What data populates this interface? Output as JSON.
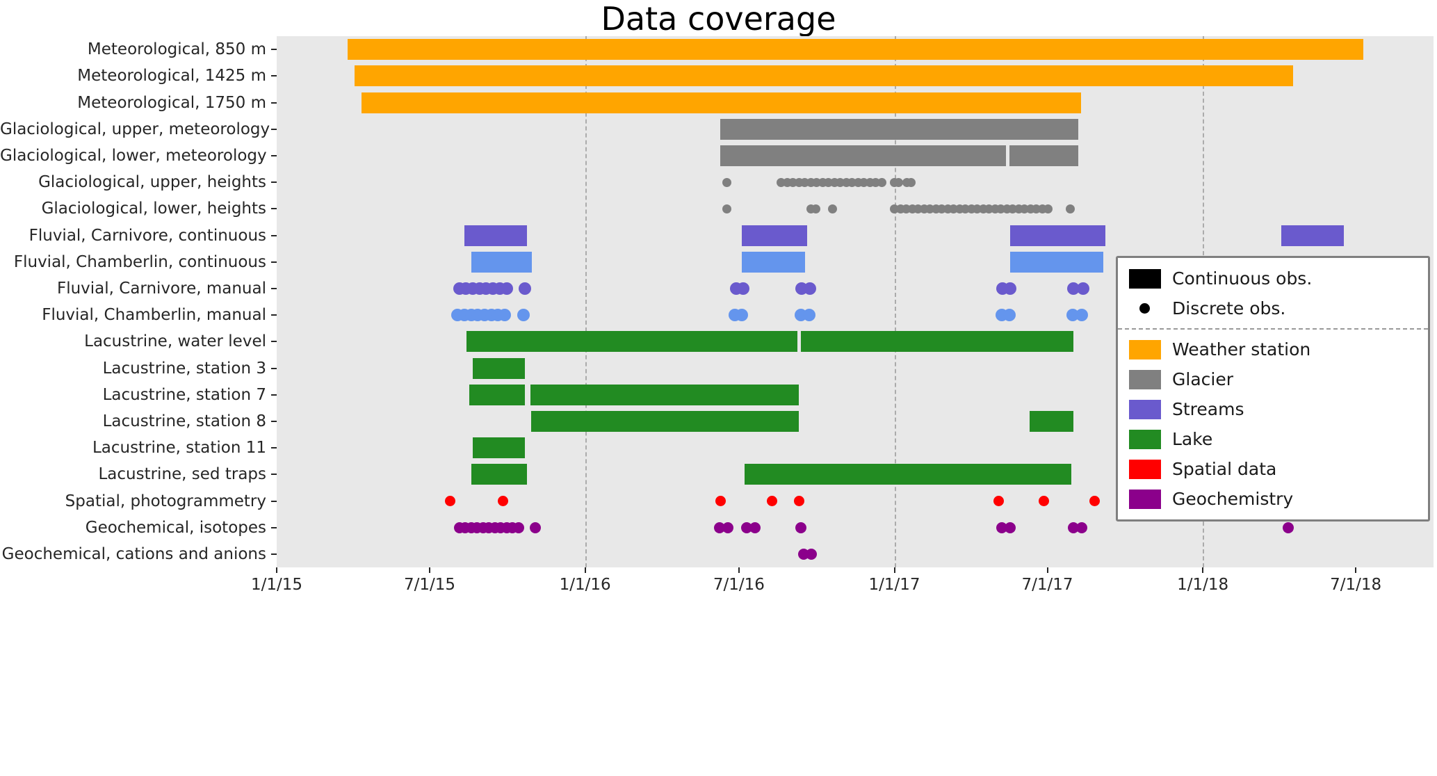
{
  "chart_data": {
    "type": "bar",
    "subtype": "gantt-timeline",
    "title": "Data coverage",
    "x_axis": {
      "domain": [
        "2015-01-01",
        "2018-10-01"
      ],
      "tick_labels": [
        "1/1/15",
        "7/1/15",
        "1/1/16",
        "7/1/16",
        "1/1/17",
        "7/1/17",
        "1/1/18",
        "7/1/18"
      ],
      "tick_dates": [
        "2015-01-01",
        "2015-07-01",
        "2016-01-01",
        "2016-07-01",
        "2017-01-01",
        "2017-07-01",
        "2018-01-01",
        "2018-07-01"
      ],
      "gridline_dates": [
        "2016-01-01",
        "2017-01-01",
        "2018-01-01"
      ],
      "grid": "dashed-vertical-at-year-starts"
    },
    "colors": {
      "weather_station": "#FFA500",
      "glacier": "#808080",
      "streams_dark": "#6A5ACD",
      "streams_light": "#6495ED",
      "lake": "#228B22",
      "spatial": "#FF0000",
      "geochemistry": "#8B008B",
      "black": "#000000",
      "plot_background": "#E8E8E8"
    },
    "rows": [
      {
        "label": "Meteorological, 850 m",
        "color": "weather_station",
        "segments": [
          [
            "2015-03-26",
            "2018-07-10"
          ]
        ],
        "points": []
      },
      {
        "label": "Meteorological, 1425 m",
        "color": "weather_station",
        "segments": [
          [
            "2015-04-03",
            "2018-04-18"
          ]
        ],
        "points": []
      },
      {
        "label": "Meteorological, 1750 m",
        "color": "weather_station",
        "segments": [
          [
            "2015-04-11",
            "2017-08-10"
          ]
        ],
        "points": []
      },
      {
        "label": "Glaciological, upper, meteorology",
        "color": "glacier",
        "segments": [
          [
            "2016-06-09",
            "2017-08-07"
          ]
        ],
        "points": []
      },
      {
        "label": "Glaciological, lower, meteorology",
        "color": "glacier",
        "segments": [
          [
            "2016-06-09",
            "2017-05-13"
          ],
          [
            "2017-05-17",
            "2017-08-07"
          ]
        ],
        "points": []
      },
      {
        "label": "Glaciological, upper, heights",
        "color": "glacier",
        "marker_size": 13,
        "segments": [],
        "points": [
          "2016-06-17",
          "2016-08-20",
          "2016-08-27",
          "2016-09-03",
          "2016-09-10",
          "2016-09-17",
          "2016-09-24",
          "2016-10-01",
          "2016-10-08",
          "2016-10-15",
          "2016-10-22",
          "2016-10-29",
          "2016-11-05",
          "2016-11-12",
          "2016-11-19",
          "2016-11-26",
          "2016-12-03",
          "2016-12-10",
          "2016-12-17",
          "2017-01-01",
          "2017-01-06",
          "2017-01-16",
          "2017-01-21"
        ]
      },
      {
        "label": "Glaciological, lower, heights",
        "color": "glacier",
        "marker_size": 13,
        "segments": [],
        "points": [
          "2016-06-17",
          "2016-09-24",
          "2016-09-30",
          "2016-10-20",
          "2017-01-01",
          "2017-01-08",
          "2017-01-15",
          "2017-01-22",
          "2017-01-29",
          "2017-02-05",
          "2017-02-12",
          "2017-02-19",
          "2017-02-26",
          "2017-03-05",
          "2017-03-12",
          "2017-03-19",
          "2017-03-26",
          "2017-04-02",
          "2017-04-09",
          "2017-04-16",
          "2017-04-23",
          "2017-04-30",
          "2017-05-07",
          "2017-05-14",
          "2017-05-21",
          "2017-05-28",
          "2017-06-04",
          "2017-06-11",
          "2017-06-18",
          "2017-06-25",
          "2017-07-02",
          "2017-07-28"
        ]
      },
      {
        "label": "Fluvial, Carnivore, continuous",
        "color": "streams_dark",
        "segments": [
          [
            "2015-08-11",
            "2015-10-24"
          ],
          [
            "2016-07-04",
            "2016-09-20"
          ],
          [
            "2017-05-18",
            "2017-09-08"
          ],
          [
            "2018-04-04",
            "2018-06-17"
          ]
        ],
        "points": []
      },
      {
        "label": "Fluvial, Chamberlin, continuous",
        "color": "streams_light",
        "segments": [
          [
            "2015-08-19",
            "2015-10-30"
          ],
          [
            "2016-07-04",
            "2016-09-17"
          ],
          [
            "2017-05-18",
            "2017-09-05"
          ]
        ],
        "points": []
      },
      {
        "label": "Fluvial, Carnivore, manual",
        "color": "streams_dark",
        "marker_size": 18,
        "segments": [],
        "points": [
          "2015-08-05",
          "2015-08-13",
          "2015-08-21",
          "2015-08-29",
          "2015-09-06",
          "2015-09-14",
          "2015-09-22",
          "2015-09-30",
          "2015-10-22",
          "2016-06-28",
          "2016-07-06",
          "2016-09-13",
          "2016-09-23",
          "2017-05-09",
          "2017-05-18",
          "2017-08-01",
          "2017-08-12"
        ]
      },
      {
        "label": "Fluvial, Chamberlin, manual",
        "color": "streams_light",
        "marker_size": 18,
        "segments": [],
        "points": [
          "2015-08-03",
          "2015-08-11",
          "2015-08-19",
          "2015-08-27",
          "2015-09-04",
          "2015-09-12",
          "2015-09-20",
          "2015-09-28",
          "2015-10-20",
          "2016-06-26",
          "2016-07-04",
          "2016-09-12",
          "2016-09-22",
          "2017-05-08",
          "2017-05-17",
          "2017-07-31",
          "2017-08-11"
        ]
      },
      {
        "label": "Lacustrine, water level",
        "color": "lake",
        "segments": [
          [
            "2015-08-14",
            "2016-09-08"
          ],
          [
            "2016-09-12",
            "2017-08-01"
          ]
        ],
        "points": []
      },
      {
        "label": "Lacustrine, station 3",
        "color": "lake",
        "segments": [
          [
            "2015-08-21",
            "2015-10-22"
          ]
        ],
        "points": []
      },
      {
        "label": "Lacustrine, station 7",
        "color": "lake",
        "segments": [
          [
            "2015-08-17",
            "2015-10-22"
          ],
          [
            "2015-10-28",
            "2016-09-10"
          ]
        ],
        "points": []
      },
      {
        "label": "Lacustrine, station 8",
        "color": "lake",
        "segments": [
          [
            "2015-10-29",
            "2016-09-10"
          ],
          [
            "2017-06-10",
            "2017-08-01"
          ]
        ],
        "points": []
      },
      {
        "label": "Lacustrine, station 11",
        "color": "lake",
        "segments": [
          [
            "2015-08-21",
            "2015-10-22"
          ]
        ],
        "points": []
      },
      {
        "label": "Lacustrine, sed traps",
        "color": "lake",
        "segments": [
          [
            "2015-08-19",
            "2015-10-24"
          ],
          [
            "2016-07-08",
            "2017-07-29"
          ]
        ],
        "points": []
      },
      {
        "label": "Spatial, photogrammetry",
        "color": "spatial",
        "marker_size": 15,
        "segments": [],
        "points": [
          "2015-07-25",
          "2015-09-26",
          "2016-06-09",
          "2016-08-09",
          "2016-09-10",
          "2017-05-04",
          "2017-06-27",
          "2017-08-26"
        ]
      },
      {
        "label": "Geochemical, isotopes",
        "color": "geochemistry",
        "marker_size": 16,
        "segments": [],
        "points": [
          "2015-08-05",
          "2015-08-12",
          "2015-08-19",
          "2015-08-26",
          "2015-09-02",
          "2015-09-09",
          "2015-09-16",
          "2015-09-23",
          "2015-09-30",
          "2015-10-07",
          "2015-10-14",
          "2015-11-03",
          "2016-06-08",
          "2016-06-18",
          "2016-07-10",
          "2016-07-20",
          "2016-09-12",
          "2017-05-08",
          "2017-05-18",
          "2017-08-01",
          "2017-08-11",
          "2018-04-12"
        ]
      },
      {
        "label": "Geochemical, cations and anions",
        "color": "geochemistry",
        "marker_size": 16,
        "segments": [],
        "points": [
          "2016-09-16",
          "2016-09-25"
        ]
      }
    ],
    "legend": {
      "obs_entries": [
        {
          "label": "Continuous obs.",
          "marker": "bar",
          "color": "black"
        },
        {
          "label": "Discrete obs.",
          "marker": "dot",
          "color": "black"
        }
      ],
      "category_entries": [
        {
          "label": "Weather station",
          "color": "weather_station"
        },
        {
          "label": "Glacier",
          "color": "glacier"
        },
        {
          "label": "Streams",
          "color": "streams_dark"
        },
        {
          "label": "Lake",
          "color": "lake"
        },
        {
          "label": "Spatial data",
          "color": "spatial"
        },
        {
          "label": "Geochemistry",
          "color": "geochemistry"
        }
      ]
    }
  }
}
